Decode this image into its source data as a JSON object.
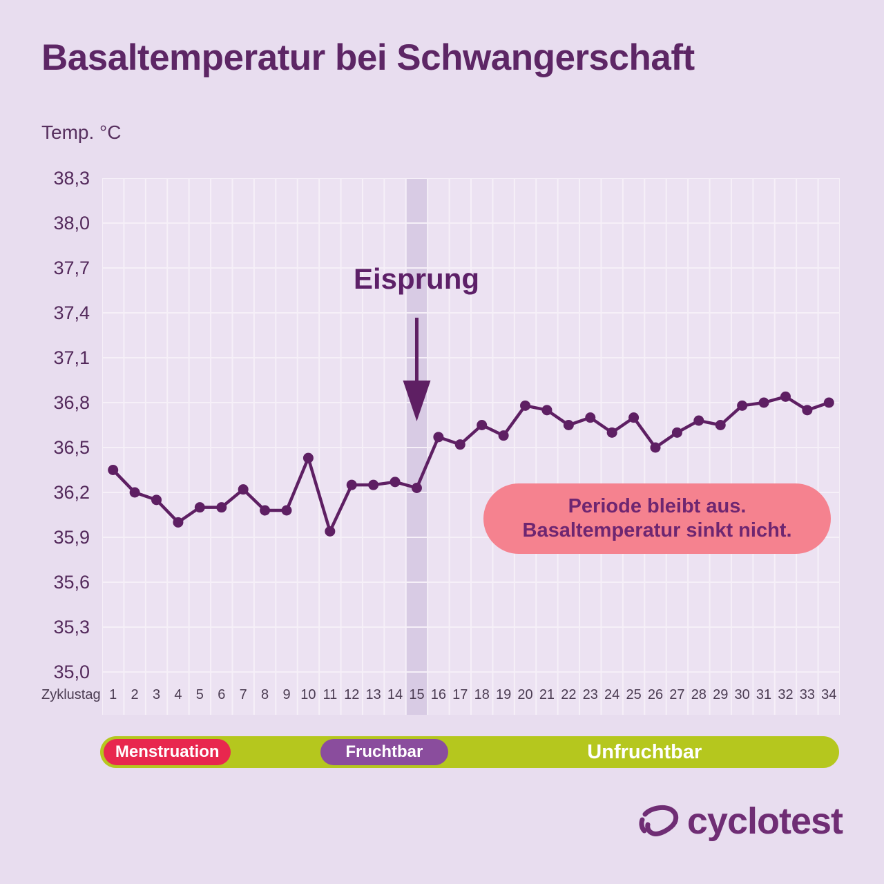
{
  "header": {
    "title": "Basaltemperatur bei Schwangerschaft"
  },
  "footer": {
    "brand": "cyclotest"
  },
  "colors": {
    "page_bg": "#e8ddef",
    "plot_bg": "#ece2f2",
    "ovulation_band": "#d8cbe4",
    "gridline": "#f6f0f8",
    "accent": "#5e1f63",
    "callout_bg": "#f5828f",
    "callout_text": "#6e2671",
    "menstruation_red": "#e8274e",
    "fertile_purple": "#8a4d9d",
    "infertile_green": "#b5c71e",
    "logo_purple": "#6f2d74",
    "axis_text": "#4a3b51"
  },
  "chart_data": {
    "type": "line",
    "title": "Basaltemperatur bei Schwangerschaft",
    "xlabel": "Zyklustag",
    "ylabel": "Temp. °C",
    "ylim": [
      35.0,
      38.3
    ],
    "ytick_step": 0.3,
    "ytick_labels": [
      "38,3",
      "38,0",
      "37,7",
      "37,4",
      "37,1",
      "36,8",
      "36,5",
      "36,2",
      "35,9",
      "35,6",
      "35,3",
      "35,0"
    ],
    "grid": true,
    "days": [
      1,
      2,
      3,
      4,
      5,
      6,
      7,
      8,
      9,
      10,
      11,
      12,
      13,
      14,
      15,
      16,
      17,
      18,
      19,
      20,
      21,
      22,
      23,
      24,
      25,
      26,
      27,
      28,
      29,
      30,
      31,
      32,
      33,
      34
    ],
    "series": [
      {
        "name": "Basaltemperatur",
        "values": [
          36.35,
          36.2,
          36.15,
          36.0,
          36.1,
          36.1,
          36.22,
          36.08,
          36.08,
          36.43,
          35.94,
          36.25,
          36.25,
          36.27,
          36.23,
          36.57,
          36.52,
          36.65,
          36.58,
          36.78,
          36.75,
          36.65,
          36.7,
          36.6,
          36.7,
          36.5,
          36.6,
          36.68,
          36.65,
          36.78,
          36.8,
          36.84,
          36.75,
          36.8
        ]
      }
    ],
    "ovulation_day": 15,
    "annotations": {
      "ovulation_label": "Eisprung",
      "callout_line1": "Periode bleibt aus.",
      "callout_line2": "Basaltemperatur sinkt nicht."
    },
    "bands": [
      {
        "label": "Menstruation",
        "start_day": 1,
        "end_day": 6,
        "color": "#e8274e"
      },
      {
        "label": "Fruchtbar",
        "start_day": 11,
        "end_day": 16,
        "color": "#8a4d9d"
      },
      {
        "label": "Unfruchtbar",
        "start_day": 17,
        "end_day": 34,
        "color": "transparent"
      }
    ]
  }
}
